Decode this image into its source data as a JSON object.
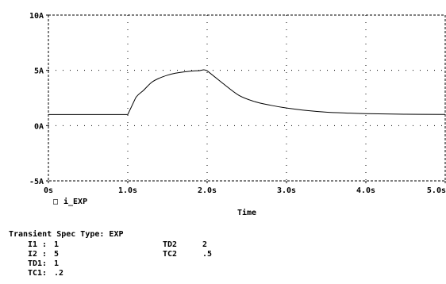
{
  "chart_data": {
    "type": "line",
    "xlabel": "Time",
    "ylabel": "",
    "xlim": [
      0,
      5
    ],
    "ylim": [
      -5,
      10
    ],
    "x_ticks": [
      0,
      1,
      2,
      3,
      4,
      5
    ],
    "x_tick_labels": [
      "0s",
      "1.0s",
      "2.0s",
      "3.0s",
      "4.0s",
      "5.0s"
    ],
    "y_ticks": [
      -5,
      0,
      5,
      10
    ],
    "y_tick_labels": [
      "-5A",
      "0A",
      "5A",
      "10A"
    ],
    "grid": true,
    "legend": "bottom-left",
    "series": [
      {
        "name": "i_EXP",
        "x": [
          0,
          1.0,
          1.1,
          1.2,
          1.3,
          1.4,
          1.5,
          1.6,
          1.7,
          1.8,
          1.9,
          2.0,
          2.2,
          2.4,
          2.6,
          2.8,
          3.0,
          3.25,
          3.5,
          3.75,
          4.0,
          4.5,
          5.0
        ],
        "values": [
          1,
          1,
          2.52,
          3.2,
          3.91,
          4.3,
          4.56,
          4.74,
          4.85,
          4.93,
          4.97,
          4.96,
          3.81,
          2.74,
          2.17,
          1.84,
          1.59,
          1.37,
          1.22,
          1.14,
          1.08,
          1.03,
          1.01
        ]
      }
    ]
  },
  "legend": {
    "marker": "□",
    "label": "i_EXP"
  },
  "spec": {
    "title": "Transient Spec Type: EXP",
    "left": [
      {
        "key": "I1 :",
        "value": "1"
      },
      {
        "key": "I2 :",
        "value": "5"
      },
      {
        "key": "TD1:",
        "value": "1"
      },
      {
        "key": "TC1:",
        "value": ".2"
      }
    ],
    "right": [
      {
        "key": "TD2",
        "value": "2"
      },
      {
        "key": "TC2",
        "value": ".5"
      }
    ]
  }
}
